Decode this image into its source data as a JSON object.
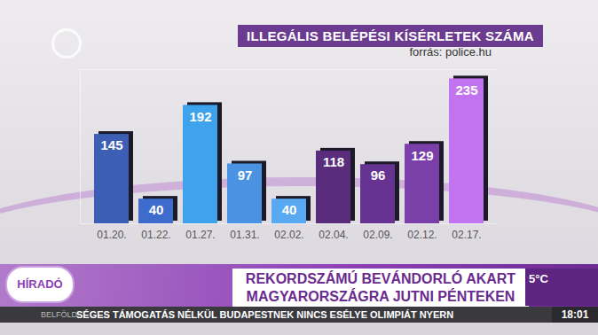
{
  "chart_data": {
    "type": "bar",
    "title": "ILLEGÁLIS BELÉPÉSI KÍSÉRLETEK SZÁMA",
    "subtitle": "forrás: police.hu",
    "categories": [
      "01.20.",
      "01.22.",
      "01.27.",
      "01.31.",
      "02.02.",
      "02.04.",
      "02.09.",
      "02.12.",
      "02.17."
    ],
    "values": [
      145,
      40,
      192,
      97,
      40,
      118,
      96,
      129,
      235
    ],
    "colors": [
      "#3c5eb4",
      "#3d6ccc",
      "#3ea2ec",
      "#4a92e2",
      "#58a8f2",
      "#5a2c7c",
      "#673392",
      "#7a3fa8",
      "#c274f0"
    ],
    "ylim": [
      0,
      250
    ],
    "grid": false,
    "data_labels": true,
    "tick_labels": "x"
  },
  "overlay": {
    "logo": "HÍRADÓ",
    "headline": [
      "REKORDSZÁMÚ BEVÁNDORLÓ AKART",
      "MAGYARORSZÁGRA JUTNI PÉNTEKEN"
    ],
    "ticker_section": "BELFÖLD",
    "ticker_text": "SÉGES TÁMOGATÁS NÉLKÜL BUDAPESTNEK NINCS ESÉLYE OLIMPIÁT NYERN",
    "clock": "18:01",
    "weather": "5°C"
  }
}
